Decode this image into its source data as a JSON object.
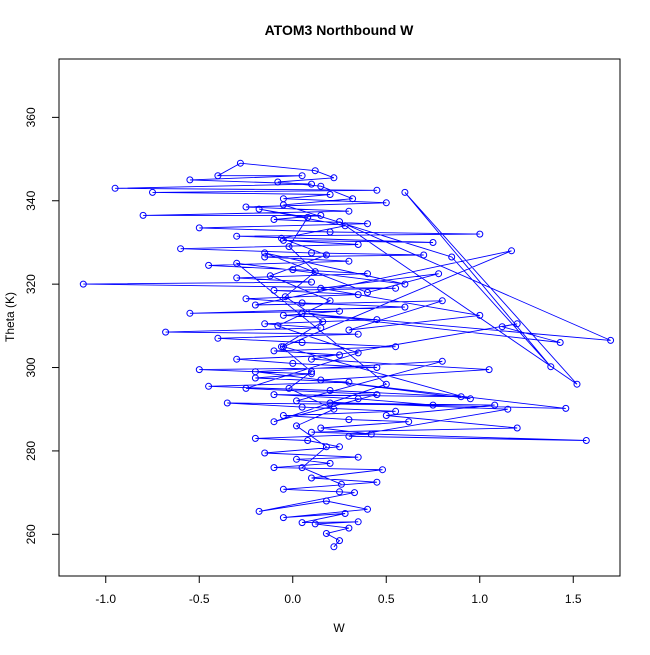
{
  "chart_data": {
    "type": "scatter",
    "title": "ATOM3 Northbound W",
    "xlabel": "W",
    "ylabel": "Theta (K)",
    "xlim": [
      -1.25,
      1.75
    ],
    "ylim": [
      250,
      374
    ],
    "xticks": [
      "-1.0",
      "-0.5",
      "0.0",
      "0.5",
      "1.0",
      "1.5"
    ],
    "yticks": [
      "260",
      "280",
      "300",
      "320",
      "340",
      "360"
    ],
    "grid": false,
    "legend": "none",
    "connect_points": true,
    "marker": "open-circle",
    "series": [
      {
        "color": "#0000ff",
        "points": [
          [
            0.22,
            257.0
          ],
          [
            0.25,
            258.5
          ],
          [
            0.18,
            260.2
          ],
          [
            0.3,
            261.5
          ],
          [
            0.12,
            262.5
          ],
          [
            0.35,
            263.0
          ],
          [
            0.05,
            262.8
          ],
          [
            0.28,
            265.0
          ],
          [
            -0.05,
            264.0
          ],
          [
            0.4,
            266.0
          ],
          [
            0.18,
            268.0
          ],
          [
            -0.18,
            265.5
          ],
          [
            0.33,
            270.0
          ],
          [
            0.25,
            270.2
          ],
          [
            -0.05,
            270.8
          ],
          [
            0.45,
            272.5
          ],
          [
            0.1,
            273.5
          ],
          [
            0.48,
            275.5
          ],
          [
            -0.1,
            276.0
          ],
          [
            0.2,
            277.0
          ],
          [
            0.02,
            278.0
          ],
          [
            0.35,
            278.5
          ],
          [
            -0.15,
            279.5
          ],
          [
            0.25,
            281.0
          ],
          [
            0.08,
            282.5
          ],
          [
            -0.2,
            283.0
          ],
          [
            0.42,
            284.0
          ],
          [
            0.15,
            285.5
          ],
          [
            0.62,
            287.0
          ],
          [
            0.3,
            287.5
          ],
          [
            -0.05,
            288.5
          ],
          [
            0.55,
            289.5
          ],
          [
            0.05,
            290.5
          ],
          [
            -0.35,
            291.5
          ],
          [
            0.75,
            291.0
          ],
          [
            0.35,
            292.5
          ],
          [
            -0.1,
            293.5
          ],
          [
            0.9,
            293.0
          ],
          [
            0.2,
            294.5
          ],
          [
            -0.45,
            295.5
          ],
          [
            0.3,
            296.5
          ],
          [
            -0.2,
            297.5
          ],
          [
            0.1,
            298.5
          ],
          [
            -0.5,
            299.5
          ],
          [
            0.45,
            300.0
          ],
          [
            0.0,
            301.0
          ],
          [
            -0.3,
            302.0
          ],
          [
            0.25,
            303.0
          ],
          [
            -0.1,
            304.0
          ],
          [
            0.55,
            305.0
          ],
          [
            0.05,
            306.0
          ],
          [
            -0.4,
            307.0
          ],
          [
            0.35,
            308.0
          ],
          [
            -0.68,
            308.5
          ],
          [
            0.15,
            309.5
          ],
          [
            -0.15,
            310.5
          ],
          [
            0.45,
            311.5
          ],
          [
            -0.05,
            312.5
          ],
          [
            0.25,
            313.5
          ],
          [
            -0.55,
            313.0
          ],
          [
            0.6,
            314.5
          ],
          [
            0.05,
            315.5
          ],
          [
            -0.25,
            316.5
          ],
          [
            0.35,
            317.5
          ],
          [
            -0.1,
            318.5
          ],
          [
            0.55,
            319.0
          ],
          [
            -1.12,
            320.0
          ],
          [
            0.1,
            320.5
          ],
          [
            -0.3,
            321.5
          ],
          [
            0.4,
            322.5
          ],
          [
            0.0,
            323.5
          ],
          [
            -0.45,
            324.5
          ],
          [
            0.3,
            325.5
          ],
          [
            -0.15,
            326.5
          ],
          [
            0.7,
            327.0
          ],
          [
            0.1,
            327.5
          ],
          [
            -0.6,
            328.5
          ],
          [
            0.35,
            329.5
          ],
          [
            -0.05,
            330.5
          ],
          [
            0.75,
            330.0
          ],
          [
            -0.3,
            331.5
          ],
          [
            1.0,
            332.0
          ],
          [
            0.2,
            332.5
          ],
          [
            -0.5,
            333.5
          ],
          [
            0.4,
            334.5
          ],
          [
            -0.1,
            335.5
          ],
          [
            0.15,
            336.5
          ],
          [
            -0.8,
            336.5
          ],
          [
            0.3,
            337.5
          ],
          [
            -0.25,
            338.5
          ],
          [
            0.5,
            339.5
          ],
          [
            -0.05,
            340.5
          ],
          [
            0.2,
            341.5
          ],
          [
            -0.75,
            342.0
          ],
          [
            0.45,
            342.5
          ],
          [
            -0.95,
            343.0
          ],
          [
            0.1,
            344.0
          ],
          [
            -0.55,
            345.0
          ],
          [
            0.05,
            346.0
          ],
          [
            -0.4,
            346.0
          ],
          [
            -0.28,
            349.0
          ],
          [
            0.12,
            347.2
          ],
          [
            0.22,
            345.5
          ],
          [
            -0.08,
            344.5
          ],
          [
            0.15,
            343.5
          ],
          [
            0.32,
            340.5
          ],
          [
            -0.05,
            339.0
          ],
          [
            0.85,
            326.5
          ],
          [
            1.38,
            300.2
          ],
          [
            0.6,
            342.0
          ],
          [
            1.52,
            296.0
          ],
          [
            0.25,
            335.0
          ],
          [
            1.7,
            306.5
          ],
          [
            0.05,
            313.0
          ],
          [
            1.43,
            306.0
          ],
          [
            1.12,
            309.8
          ],
          [
            1.2,
            310.5
          ],
          [
            0.1,
            302.0
          ],
          [
            1.05,
            299.5
          ],
          [
            0.15,
            297.0
          ],
          [
            1.46,
            290.2
          ],
          [
            0.2,
            291.5
          ],
          [
            1.08,
            291.0
          ],
          [
            0.5,
            288.5
          ],
          [
            1.2,
            285.5
          ],
          [
            0.1,
            284.5
          ],
          [
            1.57,
            282.5
          ],
          [
            0.3,
            283.5
          ],
          [
            1.15,
            290.0
          ],
          [
            0.02,
            292.0
          ],
          [
            0.8,
            301.5
          ],
          [
            -0.2,
            299.0
          ],
          [
            0.95,
            292.5
          ],
          [
            -0.05,
            305.0
          ],
          [
            1.17,
            328.0
          ],
          [
            -0.2,
            315.0
          ],
          [
            0.8,
            316.0
          ],
          [
            0.3,
            309.0
          ],
          [
            1.0,
            312.5
          ],
          [
            0.15,
            319.0
          ],
          [
            0.78,
            322.5
          ],
          [
            0.4,
            318.0
          ],
          [
            -0.15,
            327.5
          ],
          [
            0.6,
            320.0
          ],
          [
            -0.3,
            325.0
          ],
          [
            0.5,
            296.0
          ],
          [
            -0.1,
            287.0
          ],
          [
            0.45,
            293.5
          ],
          [
            -0.25,
            295.0
          ],
          [
            0.35,
            303.5
          ],
          [
            -0.08,
            310.0
          ],
          [
            0.2,
            316.0
          ],
          [
            -0.12,
            322.0
          ],
          [
            0.18,
            327.0
          ],
          [
            -0.06,
            331.0
          ],
          [
            0.28,
            334.0
          ],
          [
            -0.18,
            338.0
          ],
          [
            0.08,
            336.0
          ],
          [
            -0.02,
            329.0
          ],
          [
            0.12,
            323.0
          ],
          [
            -0.04,
            317.0
          ],
          [
            0.16,
            311.0
          ],
          [
            -0.06,
            305.0
          ],
          [
            0.1,
            299.0
          ],
          [
            -0.02,
            295.0
          ],
          [
            0.22,
            290.0
          ],
          [
            0.02,
            286.0
          ],
          [
            0.18,
            281.0
          ],
          [
            0.05,
            276.0
          ],
          [
            0.26,
            272.0
          ]
        ]
      }
    ]
  }
}
